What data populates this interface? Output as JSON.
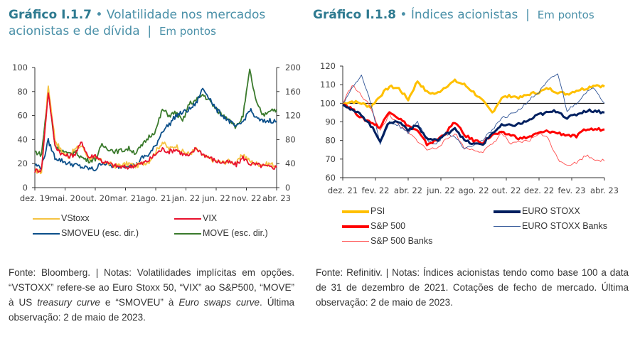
{
  "left": {
    "title_bold": "Gráfico I.1.7",
    "title_rest": " • Volatilidade nos mercados acionistas e de dívida",
    "unit": "Em pontos",
    "note_parts": [
      "Fonte: Bloomberg.  |  Notas: Volatilidades implícitas em opções. “VSTOXX” refere-se ao Euro Stoxx 50, “VIX” ao S&P500, “MOVE” à US ",
      "treasury curve",
      " e “SMOVEU” à ",
      "Euro swaps curve",
      ". Última observação: 2 de maio de 2023."
    ]
  },
  "right": {
    "title_bold": "Gráfico I.1.8",
    "title_rest": " • Índices acionistas",
    "unit": "Em pontos",
    "note": "Fonte:  Refinitiv.  |  Notas: Índices acionistas tendo como base 100 a data de 31 de dezembro de 2021. Cotações de fecho de mercado. Última observação: 2 de maio de 2023."
  },
  "chart_data": [
    {
      "type": "line",
      "title": "Volatilidade nos mercados acionistas e de dívida",
      "x_ticks": [
        "dez. 19",
        "mai. 20",
        "out. 20",
        "mar. 21",
        "ago. 21",
        "jan. 22",
        "jun. 22",
        "nov. 22",
        "abr. 23"
      ],
      "y_left": {
        "range": [
          0,
          100
        ],
        "ticks": [
          0,
          20,
          40,
          60,
          80,
          100
        ]
      },
      "y_right": {
        "range": [
          0,
          200
        ],
        "ticks": [
          0,
          40,
          80,
          120,
          160,
          200
        ]
      },
      "grid": false,
      "legend_position": "bottom",
      "series": [
        {
          "name": "VStoxx",
          "axis": "left",
          "color": "#f5c342",
          "values": [
            14,
            13,
            85,
            40,
            30,
            26,
            32,
            35,
            25,
            24,
            22,
            20,
            18,
            19,
            20,
            18,
            20,
            22,
            30,
            38,
            32,
            35,
            30,
            28,
            32,
            27,
            24,
            22,
            21,
            22,
            20,
            28,
            22,
            20,
            19,
            20,
            18
          ]
        },
        {
          "name": "VIX",
          "axis": "left",
          "color": "#e8112d",
          "values": [
            14,
            15,
            80,
            35,
            28,
            26,
            28,
            38,
            25,
            27,
            22,
            20,
            18,
            17,
            17,
            19,
            20,
            23,
            28,
            32,
            30,
            32,
            28,
            26,
            33,
            28,
            25,
            22,
            21,
            21,
            19,
            25,
            20,
            19,
            18,
            17,
            17
          ]
        },
        {
          "name": "SMOVEU (esc. dir.)",
          "axis": "right",
          "color": "#0b4f8a",
          "values": [
            38,
            34,
            78,
            50,
            45,
            40,
            38,
            34,
            32,
            30,
            42,
            38,
            34,
            36,
            38,
            36,
            50,
            55,
            70,
            95,
            105,
            120,
            125,
            130,
            140,
            165,
            150,
            130,
            120,
            110,
            100,
            110,
            130,
            115,
            110,
            112,
            110
          ]
        },
        {
          "name": "MOVE (esc. dir.)",
          "axis": "right",
          "color": "#3a7a2c",
          "values": [
            60,
            55,
            160,
            70,
            62,
            55,
            60,
            50,
            45,
            48,
            70,
            65,
            60,
            62,
            65,
            58,
            70,
            85,
            95,
            130,
            120,
            125,
            110,
            140,
            145,
            155,
            145,
            130,
            120,
            115,
            100,
            120,
            195,
            140,
            120,
            130,
            130
          ]
        }
      ]
    },
    {
      "type": "line",
      "title": "Índices acionistas",
      "x_ticks": [
        "dez. 21",
        "fev. 22",
        "abr. 22",
        "jun. 22",
        "ago. 22",
        "out. 22",
        "dez. 22",
        "fev. 23",
        "abr. 23"
      ],
      "y_range": [
        60,
        120
      ],
      "y_ticks": [
        60,
        70,
        80,
        90,
        100,
        110,
        120
      ],
      "reference_line": 100,
      "grid": false,
      "legend_position": "bottom",
      "series": [
        {
          "name": "PSI",
          "color": "#ffc000",
          "values": [
            100,
            101,
            100,
            98,
            104,
            109,
            108,
            102,
            112,
            106,
            105,
            109,
            112,
            110,
            106,
            101,
            95,
            103,
            104,
            103,
            105,
            106,
            108,
            106,
            105,
            107,
            108,
            110,
            109
          ]
        },
        {
          "name": "S&P 500",
          "color": "#ff0000",
          "values": [
            100,
            97,
            92,
            90,
            87,
            96,
            92,
            88,
            85,
            78,
            80,
            84,
            90,
            83,
            80,
            79,
            83,
            84,
            83,
            81,
            82,
            84,
            85,
            84,
            83,
            82,
            86,
            86,
            86
          ]
        },
        {
          "name": "S&P 500 Banks",
          "color": "#ff4d4d",
          "values": [
            100,
            110,
            104,
            98,
            85,
            94,
            88,
            84,
            80,
            75,
            76,
            80,
            84,
            76,
            75,
            74,
            78,
            84,
            78,
            79,
            80,
            84,
            81,
            70,
            67,
            68,
            72,
            70,
            69
          ]
        },
        {
          "name": "EURO STOXX",
          "color": "#002060",
          "values": [
            100,
            96,
            94,
            88,
            80,
            90,
            90,
            86,
            88,
            81,
            80,
            83,
            87,
            80,
            78,
            78,
            84,
            88,
            88,
            89,
            91,
            94,
            95,
            96,
            92,
            94,
            96,
            96,
            95
          ]
        },
        {
          "name": "EURO STOXX Banks",
          "color": "#2f5496",
          "values": [
            100,
            108,
            115,
            100,
            78,
            90,
            88,
            84,
            90,
            80,
            78,
            84,
            82,
            76,
            78,
            80,
            86,
            92,
            94,
            97,
            102,
            106,
            112,
            116,
            96,
            100,
            106,
            108,
            100
          ]
        }
      ]
    }
  ]
}
